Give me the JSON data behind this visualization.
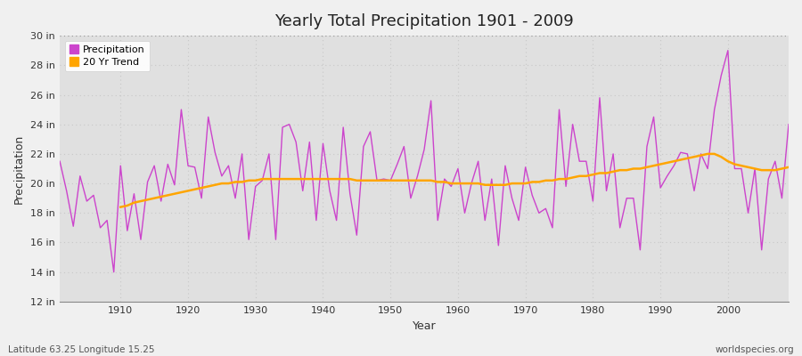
{
  "title": "Yearly Total Precipitation 1901 - 2009",
  "xlabel": "Year",
  "ylabel": "Precipitation",
  "lat_lon_label": "Latitude 63.25 Longitude 15.25",
  "worldspecies_label": "worldspecies.org",
  "ylim": [
    12,
    30
  ],
  "xlim": [
    1901,
    2009
  ],
  "yticks": [
    12,
    14,
    16,
    18,
    20,
    22,
    24,
    26,
    28,
    30
  ],
  "ytick_labels": [
    "12 in",
    "14 in",
    "16 in",
    "18 in",
    "20 in",
    "22 in",
    "24 in",
    "26 in",
    "28 in",
    "30 in"
  ],
  "xticks": [
    1910,
    1920,
    1930,
    1940,
    1950,
    1960,
    1970,
    1980,
    1990,
    2000
  ],
  "precip_color": "#CC44CC",
  "trend_color": "#FFA500",
  "fig_bg_color": "#F0F0F0",
  "plot_bg_color": "#E0E0E0",
  "grid_color": "#C8C8C8",
  "years": [
    1901,
    1902,
    1903,
    1904,
    1905,
    1906,
    1907,
    1908,
    1909,
    1910,
    1911,
    1912,
    1913,
    1914,
    1915,
    1916,
    1917,
    1918,
    1919,
    1920,
    1921,
    1922,
    1923,
    1924,
    1925,
    1926,
    1927,
    1928,
    1929,
    1930,
    1931,
    1932,
    1933,
    1934,
    1935,
    1936,
    1937,
    1938,
    1939,
    1940,
    1941,
    1942,
    1943,
    1944,
    1945,
    1946,
    1947,
    1948,
    1949,
    1950,
    1951,
    1952,
    1953,
    1954,
    1955,
    1956,
    1957,
    1958,
    1959,
    1960,
    1961,
    1962,
    1963,
    1964,
    1965,
    1966,
    1967,
    1968,
    1969,
    1970,
    1971,
    1972,
    1973,
    1974,
    1975,
    1976,
    1977,
    1978,
    1979,
    1980,
    1981,
    1982,
    1983,
    1984,
    1985,
    1986,
    1987,
    1988,
    1989,
    1990,
    1991,
    1992,
    1993,
    1994,
    1995,
    1996,
    1997,
    1998,
    1999,
    2000,
    2001,
    2002,
    2003,
    2004,
    2005,
    2006,
    2007,
    2008,
    2009
  ],
  "precip": [
    21.5,
    19.5,
    17.1,
    20.5,
    18.8,
    19.2,
    17.0,
    17.5,
    14.0,
    21.2,
    16.8,
    19.3,
    16.2,
    20.1,
    21.2,
    18.8,
    21.3,
    19.9,
    25.0,
    21.2,
    21.1,
    19.0,
    24.5,
    22.1,
    20.5,
    21.2,
    19.0,
    22.0,
    16.2,
    19.8,
    20.2,
    22.0,
    16.2,
    23.8,
    24.0,
    22.8,
    19.5,
    22.8,
    17.5,
    22.7,
    19.5,
    17.5,
    23.8,
    19.3,
    16.5,
    22.5,
    23.5,
    20.2,
    20.3,
    20.2,
    21.3,
    22.5,
    19.0,
    20.5,
    22.3,
    25.6,
    17.5,
    20.3,
    19.8,
    21.0,
    18.0,
    20.0,
    21.5,
    17.5,
    20.3,
    15.8,
    21.2,
    19.0,
    17.5,
    21.1,
    19.2,
    18.0,
    18.3,
    17.0,
    25.0,
    19.8,
    24.0,
    21.5,
    21.5,
    18.8,
    25.8,
    19.5,
    22.0,
    17.0,
    19.0,
    19.0,
    15.5,
    22.5,
    24.5,
    19.7,
    20.5,
    21.2,
    22.1,
    22.0,
    19.5,
    22.0,
    21.0,
    25.0,
    27.3,
    29.0,
    21.0,
    21.0,
    18.0,
    21.0,
    15.5,
    20.3,
    21.5,
    19.0,
    24.0
  ],
  "trend": [
    null,
    null,
    null,
    null,
    null,
    null,
    null,
    null,
    null,
    18.4,
    18.5,
    18.7,
    18.8,
    18.9,
    19.0,
    19.1,
    19.2,
    19.3,
    19.4,
    19.5,
    19.6,
    19.7,
    19.8,
    19.9,
    20.0,
    20.0,
    20.1,
    20.1,
    20.2,
    20.2,
    20.3,
    20.3,
    20.3,
    20.3,
    20.3,
    20.3,
    20.3,
    20.3,
    20.3,
    20.3,
    20.3,
    20.3,
    20.3,
    20.3,
    20.2,
    20.2,
    20.2,
    20.2,
    20.2,
    20.2,
    20.2,
    20.2,
    20.2,
    20.2,
    20.2,
    20.2,
    20.1,
    20.1,
    20.0,
    20.0,
    20.0,
    20.0,
    20.0,
    19.9,
    19.9,
    19.9,
    19.9,
    20.0,
    20.0,
    20.0,
    20.1,
    20.1,
    20.2,
    20.2,
    20.3,
    20.3,
    20.4,
    20.5,
    20.5,
    20.6,
    20.7,
    20.7,
    20.8,
    20.9,
    20.9,
    21.0,
    21.0,
    21.1,
    21.2,
    21.3,
    21.4,
    21.5,
    21.6,
    21.7,
    21.8,
    21.9,
    22.0,
    22.0,
    21.8,
    21.5,
    21.3,
    21.2,
    21.1,
    21.0,
    20.9,
    20.9,
    20.9,
    21.0,
    21.1
  ]
}
